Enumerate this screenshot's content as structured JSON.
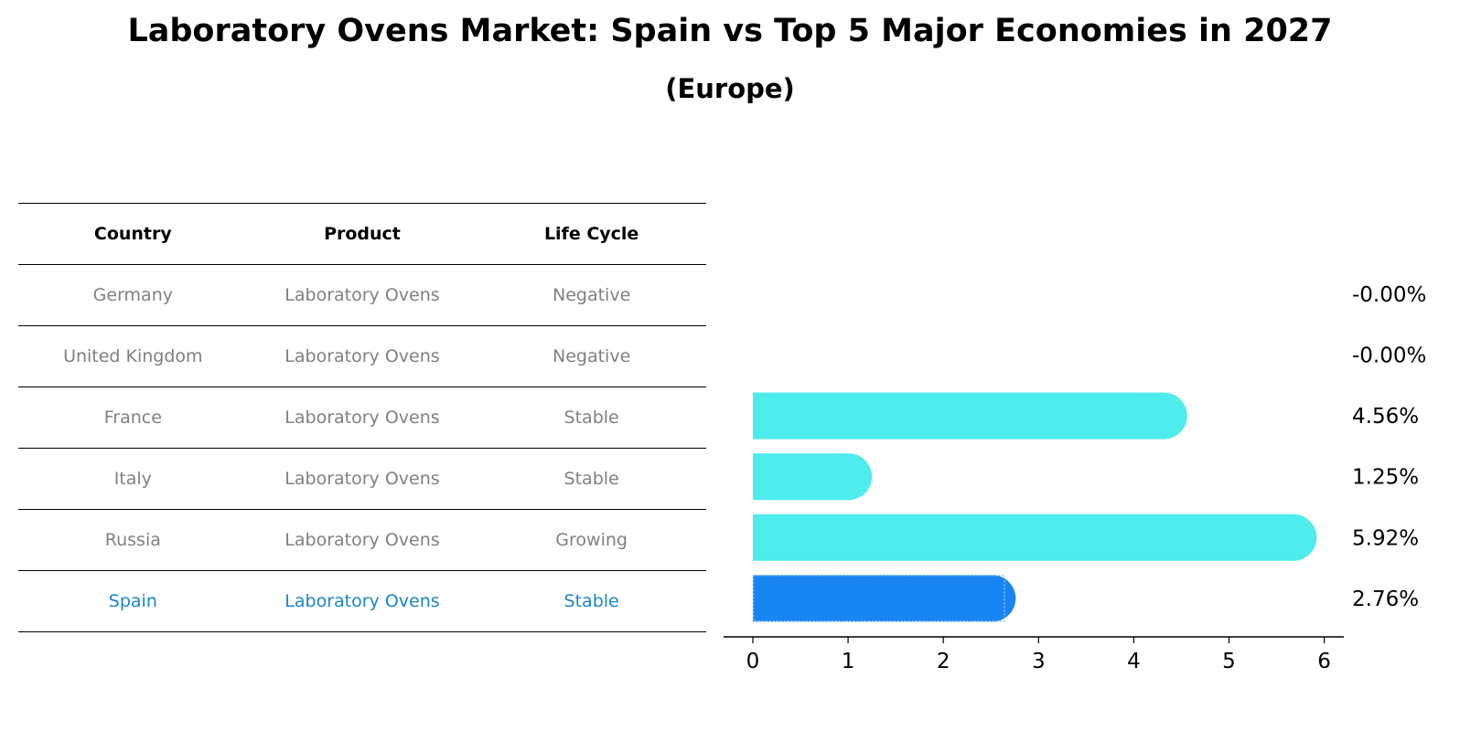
{
  "title": "Laboratory Ovens Market: Spain vs Top 5 Major Economies in 2027",
  "subtitle": "(Europe)",
  "table": {
    "headers": [
      "Country",
      "Product",
      "Life Cycle"
    ],
    "rows": [
      {
        "country": "Germany",
        "product": "Laboratory Ovens",
        "life_cycle": "Negative"
      },
      {
        "country": "United Kingdom",
        "product": "Laboratory Ovens",
        "life_cycle": "Negative"
      },
      {
        "country": "France",
        "product": "Laboratory Ovens",
        "life_cycle": "Stable"
      },
      {
        "country": "Italy",
        "product": "Laboratory Ovens",
        "life_cycle": "Stable"
      },
      {
        "country": "Russia",
        "product": "Laboratory Ovens",
        "life_cycle": "Growing"
      },
      {
        "country": "Spain",
        "product": "Laboratory Ovens",
        "life_cycle": "Stable"
      }
    ]
  },
  "colors": {
    "bar": "#4eecec",
    "highlight_bar": "#1884f2",
    "highlight_text": "#1a86c9",
    "muted_text": "#808080"
  },
  "chart_data": {
    "type": "bar",
    "orientation": "horizontal",
    "categories": [
      "Germany",
      "United Kingdom",
      "France",
      "Italy",
      "Russia",
      "Spain"
    ],
    "values": [
      -0.0,
      -0.0,
      4.56,
      1.25,
      5.92,
      2.76
    ],
    "value_labels": [
      "-0.00%",
      "-0.00%",
      "4.56%",
      "1.25%",
      "5.92%",
      "2.76%"
    ],
    "highlight": "Spain",
    "xticks": [
      "0",
      "1",
      "2",
      "3",
      "4",
      "5",
      "6"
    ],
    "xlim": [
      -0.3,
      6.25
    ],
    "xlabel": "",
    "ylabel": ""
  }
}
